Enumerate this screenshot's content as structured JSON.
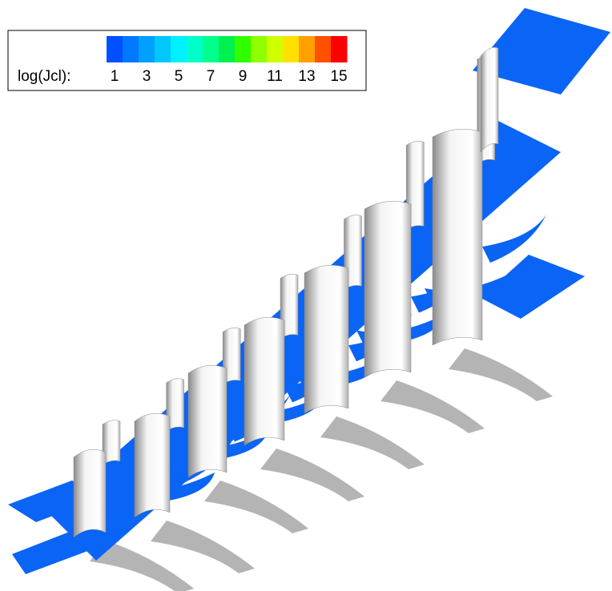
{
  "legend": {
    "label": "log(Jcl):",
    "ticks": [
      1,
      3,
      5,
      7,
      9,
      11,
      13,
      15
    ],
    "colors": [
      "#0050ff",
      "#0078ff",
      "#00a0ff",
      "#00c8ff",
      "#00f0ff",
      "#00ffc8",
      "#00ff8c",
      "#00f050",
      "#30ff00",
      "#90ff00",
      "#d0ff00",
      "#ffe000",
      "#ffa000",
      "#ff5000",
      "#ff0000"
    ]
  }
}
